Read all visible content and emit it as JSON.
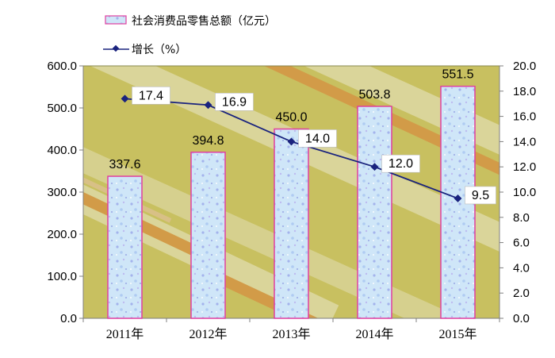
{
  "chart_data": {
    "type": "bar",
    "categories": [
      "2011年",
      "2012年",
      "2013年",
      "2014年",
      "2015年"
    ],
    "series": [
      {
        "name": "社会消费品零售总额（亿元）",
        "type": "bar",
        "axis": "left",
        "values": [
          337.6,
          394.8,
          450.0,
          503.8,
          551.5
        ],
        "labels": [
          "337.6",
          "394.8",
          "450.0",
          "503.8",
          "551.5"
        ],
        "color": "#c6e2f7",
        "border_color": "#e040a0"
      },
      {
        "name": "增长（%）",
        "type": "line",
        "axis": "right",
        "values": [
          17.4,
          16.9,
          14.0,
          12.0,
          9.5
        ],
        "labels": [
          "17.4",
          "16.9",
          "14.0",
          "12.0",
          "9.5"
        ],
        "color": "#1a237e"
      }
    ],
    "y_left": {
      "ylim": [
        0,
        600
      ],
      "ticks": [
        "0.0",
        "100.0",
        "200.0",
        "300.0",
        "400.0",
        "500.0",
        "600.0"
      ]
    },
    "y_right": {
      "ylim": [
        0,
        20
      ],
      "ticks": [
        "0.0",
        "2.0",
        "4.0",
        "6.0",
        "8.0",
        "10.0",
        "12.0",
        "14.0",
        "16.0",
        "18.0",
        "20.0"
      ]
    },
    "legend_position": "top-left",
    "plot_background": "#c8c060",
    "grid": false
  }
}
